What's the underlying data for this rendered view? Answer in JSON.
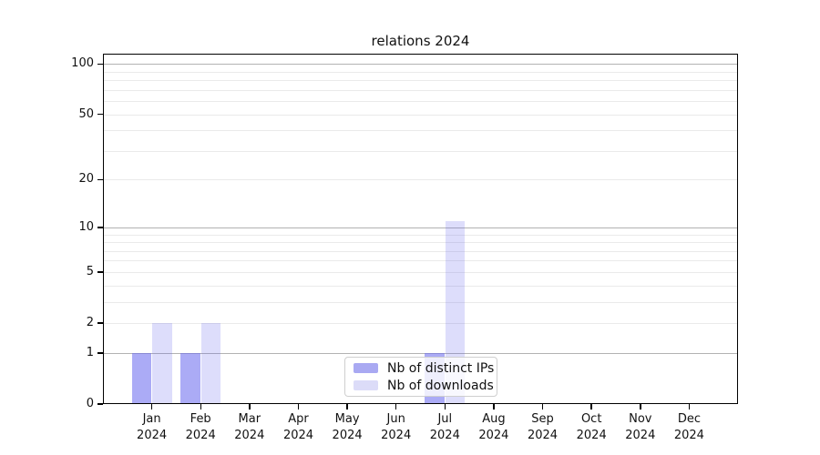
{
  "chart_data": {
    "type": "bar",
    "title": "relations 2024",
    "categories": [
      "Jan",
      "Feb",
      "Mar",
      "Apr",
      "May",
      "Jun",
      "Jul",
      "Aug",
      "Sep",
      "Oct",
      "Nov",
      "Dec"
    ],
    "year_label": "2024",
    "series": [
      {
        "name": "Nb of distinct IPs",
        "values": [
          1,
          1,
          0,
          0,
          0,
          0,
          1,
          0,
          0,
          0,
          0,
          0
        ],
        "fill": "rgba(102,102,238,0.55)",
        "legend_swatch": "#a9a9f2"
      },
      {
        "name": "Nb of downloads",
        "values": [
          2,
          2,
          0,
          0,
          0,
          0,
          11,
          0,
          0,
          0,
          0,
          0
        ],
        "fill": "rgba(102,102,238,0.22)",
        "legend_swatch": "#dcdcf8"
      }
    ],
    "xlabel": "",
    "ylabel": "",
    "yscale": "log1p",
    "ylim": [
      0,
      115
    ],
    "yticks": [
      0,
      1,
      2,
      5,
      10,
      20,
      50,
      100
    ],
    "grid": {
      "major": [
        1,
        10,
        100
      ],
      "major_color": "#b2b2b2",
      "minor": [
        2,
        3,
        4,
        5,
        6,
        7,
        8,
        9,
        20,
        30,
        40,
        50,
        60,
        70,
        80,
        90
      ],
      "minor_color": "#eaeaea"
    },
    "legend_position": "lower-center",
    "axis_color": "#000000"
  }
}
